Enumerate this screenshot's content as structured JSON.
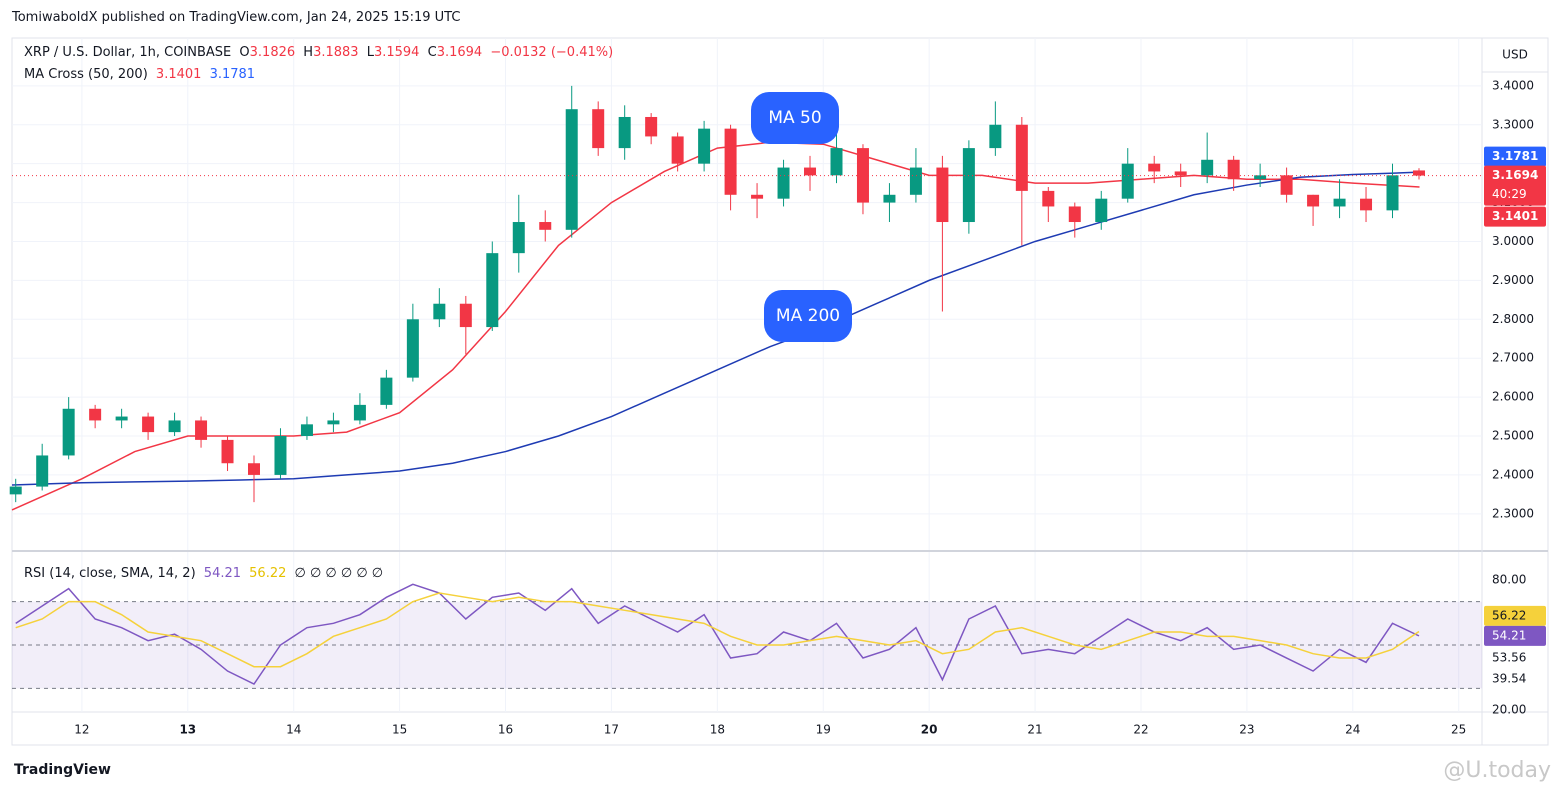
{
  "header": {
    "publisher": "TomiwaboldX published on TradingView.com, Jan 24, 2025 15:19 UTC"
  },
  "chart_data": [
    {
      "type": "candlestick",
      "title": "XRP / U.S. Dollar, 1h, COINBASE",
      "ohlc_labels": [
        "O",
        "H",
        "L",
        "C"
      ],
      "change_label": "−0.0132 (−0.41%)",
      "indicator": "MA Cross (50, 200)",
      "currency": "USD",
      "countdown": "40:29",
      "up_color": "#089981",
      "down_color": "#f23645",
      "x": [
        11.375,
        11.625,
        11.875,
        12.125,
        12.375,
        12.625,
        12.875,
        13.125,
        13.375,
        13.625,
        13.875,
        14.125,
        14.375,
        14.625,
        14.875,
        15.125,
        15.375,
        15.625,
        15.875,
        16.125,
        16.375,
        16.625,
        16.875,
        17.125,
        17.375,
        17.625,
        17.875,
        18.125,
        18.375,
        18.625,
        18.875,
        19.125,
        19.375,
        19.625,
        19.875,
        20.125,
        20.375,
        20.625,
        20.875,
        21.125,
        21.375,
        21.625,
        21.875,
        22.125,
        22.375,
        22.625,
        22.875,
        23.125,
        23.375,
        23.625,
        23.875,
        24.125,
        24.375,
        24.625
      ],
      "open": [
        2.35,
        2.37,
        2.45,
        2.57,
        2.54,
        2.55,
        2.51,
        2.54,
        2.49,
        2.43,
        2.4,
        2.5,
        2.53,
        2.54,
        2.58,
        2.65,
        2.8,
        2.84,
        2.78,
        2.97,
        3.05,
        3.03,
        3.34,
        3.24,
        3.32,
        3.27,
        3.2,
        3.29,
        3.12,
        3.11,
        3.19,
        3.17,
        3.24,
        3.1,
        3.12,
        3.19,
        3.05,
        3.24,
        3.3,
        3.13,
        3.09,
        3.05,
        3.11,
        3.2,
        3.18,
        3.17,
        3.21,
        3.16,
        3.17,
        3.12,
        3.09,
        3.11,
        3.08,
        3.1826
      ],
      "high": [
        2.39,
        2.48,
        2.6,
        2.58,
        2.57,
        2.56,
        2.56,
        2.55,
        2.5,
        2.45,
        2.52,
        2.55,
        2.56,
        2.61,
        2.67,
        2.84,
        2.88,
        2.86,
        3.0,
        3.12,
        3.08,
        3.4,
        3.36,
        3.35,
        3.33,
        3.28,
        3.31,
        3.3,
        3.15,
        3.21,
        3.22,
        3.28,
        3.25,
        3.15,
        3.24,
        3.22,
        3.26,
        3.36,
        3.32,
        3.14,
        3.1,
        3.13,
        3.24,
        3.22,
        3.2,
        3.28,
        3.22,
        3.2,
        3.19,
        3.12,
        3.16,
        3.14,
        3.2,
        3.1883
      ],
      "low": [
        2.33,
        2.36,
        2.44,
        2.52,
        2.52,
        2.49,
        2.5,
        2.47,
        2.41,
        2.33,
        2.39,
        2.49,
        2.51,
        2.53,
        2.57,
        2.64,
        2.78,
        2.71,
        2.77,
        2.92,
        3.0,
        3.01,
        3.22,
        3.21,
        3.25,
        3.18,
        3.18,
        3.08,
        3.06,
        3.09,
        3.13,
        3.15,
        3.07,
        3.05,
        3.1,
        2.82,
        3.02,
        3.22,
        2.99,
        3.05,
        3.01,
        3.03,
        3.1,
        3.15,
        3.14,
        3.15,
        3.13,
        3.14,
        3.1,
        3.04,
        3.06,
        3.05,
        3.06,
        3.1594
      ],
      "close": [
        2.37,
        2.45,
        2.57,
        2.54,
        2.55,
        2.51,
        2.54,
        2.49,
        2.43,
        2.4,
        2.5,
        2.53,
        2.54,
        2.58,
        2.65,
        2.8,
        2.84,
        2.78,
        2.97,
        3.05,
        3.03,
        3.34,
        3.24,
        3.32,
        3.27,
        3.2,
        3.29,
        3.12,
        3.11,
        3.19,
        3.17,
        3.24,
        3.1,
        3.12,
        3.19,
        3.05,
        3.24,
        3.3,
        3.13,
        3.09,
        3.05,
        3.11,
        3.2,
        3.18,
        3.17,
        3.21,
        3.16,
        3.17,
        3.12,
        3.09,
        3.11,
        3.08,
        3.17,
        3.1694
      ],
      "series": [
        {
          "name": "MA 50",
          "color": "#f23645",
          "x": [
            11.34,
            12,
            12.5,
            13,
            13.5,
            14,
            14.5,
            15,
            15.5,
            16,
            16.5,
            17,
            17.5,
            18,
            18.5,
            19,
            19.5,
            20,
            20.5,
            21,
            21.5,
            22,
            22.5,
            23,
            23.5,
            24,
            24.63
          ],
          "values": [
            2.31,
            2.39,
            2.46,
            2.5,
            2.5,
            2.5,
            2.51,
            2.56,
            2.67,
            2.82,
            2.99,
            3.1,
            3.18,
            3.24,
            3.255,
            3.25,
            3.21,
            3.17,
            3.17,
            3.15,
            3.15,
            3.16,
            3.17,
            3.16,
            3.16,
            3.15,
            3.1401
          ]
        },
        {
          "name": "MA 200",
          "color": "#1e3bb3",
          "x": [
            11.34,
            12,
            12.5,
            13,
            13.5,
            14,
            14.5,
            15,
            15.5,
            16,
            16.5,
            17,
            17.5,
            18,
            18.5,
            19,
            19.5,
            20,
            20.5,
            21,
            21.5,
            22,
            22.5,
            23,
            23.5,
            24,
            24.63
          ],
          "values": [
            2.374,
            2.38,
            2.382,
            2.384,
            2.387,
            2.39,
            2.4,
            2.41,
            2.43,
            2.46,
            2.5,
            2.55,
            2.61,
            2.67,
            2.73,
            2.78,
            2.84,
            2.9,
            2.95,
            3.0,
            3.04,
            3.08,
            3.12,
            3.145,
            3.165,
            3.172,
            3.1781
          ]
        }
      ],
      "xlim": [
        11.34,
        25.22
      ],
      "xticks": [
        12,
        13,
        14,
        15,
        16,
        17,
        18,
        19,
        20,
        21,
        22,
        23,
        24,
        25
      ],
      "xticks_bold": [
        13,
        20
      ],
      "ylim": [
        2.207,
        3.523
      ],
      "yticks": [
        {
          "value": 2.3,
          "label": "2.3000"
        },
        {
          "value": 2.4,
          "label": "2.4000"
        },
        {
          "value": 2.5,
          "label": "2.5000"
        },
        {
          "value": 2.6,
          "label": "2.6000"
        },
        {
          "value": 2.7,
          "label": "2.7000"
        },
        {
          "value": 2.8,
          "label": "2.8000"
        },
        {
          "value": 2.9,
          "label": "2.9000"
        },
        {
          "value": 3.0,
          "label": "3.0000"
        },
        {
          "value": 3.1,
          "label": "3.1000"
        },
        {
          "value": 3.2,
          "label": "3.2000"
        },
        {
          "value": 3.3,
          "label": "3.3000"
        },
        {
          "value": 3.4,
          "label": "3.4000"
        }
      ],
      "grid": true
    },
    {
      "type": "line",
      "title": "RSI (14, close, SMA, 14, 2)",
      "na_labels": "∅ ∅ ∅ ∅ ∅ ∅",
      "x": [
        11.375,
        11.625,
        11.875,
        12.125,
        12.375,
        12.625,
        12.875,
        13.125,
        13.375,
        13.625,
        13.875,
        14.125,
        14.375,
        14.625,
        14.875,
        15.125,
        15.375,
        15.625,
        15.875,
        16.125,
        16.375,
        16.625,
        16.875,
        17.125,
        17.375,
        17.625,
        17.875,
        18.125,
        18.375,
        18.625,
        18.875,
        19.125,
        19.375,
        19.625,
        19.875,
        20.125,
        20.375,
        20.625,
        20.875,
        21.125,
        21.375,
        21.625,
        21.875,
        22.125,
        22.375,
        22.625,
        22.875,
        23.125,
        23.375,
        23.625,
        23.875,
        24.125,
        24.375,
        24.625
      ],
      "series": [
        {
          "color": "#7e57c2",
          "values": [
            60,
            68,
            76,
            62,
            58,
            52,
            55,
            48,
            38,
            32,
            50,
            58,
            60,
            64,
            72,
            78,
            74,
            62,
            72,
            74,
            66,
            76,
            60,
            68,
            62,
            56,
            64,
            44,
            46,
            56,
            52,
            60,
            44,
            48,
            58,
            34,
            62,
            68,
            46,
            48,
            46,
            54,
            62,
            56,
            52,
            58,
            48,
            50,
            44,
            38,
            48,
            42,
            60,
            54.21
          ]
        },
        {
          "color": "#f5d13b",
          "values": [
            58,
            62,
            70,
            70,
            64,
            56,
            54,
            52,
            46,
            40,
            40,
            46,
            54,
            58,
            62,
            70,
            74,
            72,
            70,
            72,
            70,
            70,
            68,
            66,
            64,
            62,
            60,
            54,
            50,
            50,
            52,
            54,
            52,
            50,
            52,
            46,
            48,
            56,
            58,
            54,
            50,
            48,
            52,
            56,
            56,
            54,
            54,
            52,
            50,
            46,
            44,
            44,
            48,
            56.22
          ]
        }
      ],
      "levels": [
        70,
        50,
        30
      ],
      "band_color": "#7e57c2",
      "other_values": [
        53.56,
        39.54
      ],
      "ylim": [
        19.1,
        92.9
      ],
      "yticks": [
        {
          "value": 80,
          "label": "80.00"
        },
        {
          "value": 20,
          "label": "20.00"
        }
      ]
    }
  ],
  "footer": {
    "brand": "TradingView",
    "watermark": "@U.today"
  }
}
